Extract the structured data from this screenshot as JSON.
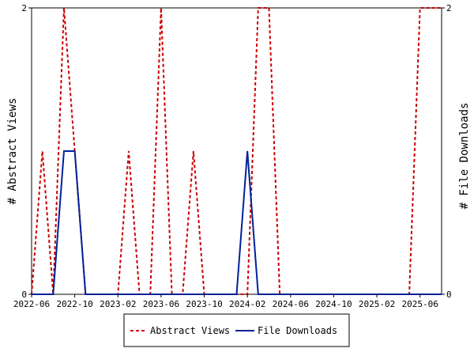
{
  "chart_data": {
    "type": "line",
    "title": "",
    "x": [
      "2022-06",
      "2022-07",
      "2022-08",
      "2022-09",
      "2022-10",
      "2022-11",
      "2022-12",
      "2023-01",
      "2023-02",
      "2023-03",
      "2023-04",
      "2023-05",
      "2023-06",
      "2023-07",
      "2023-08",
      "2023-09",
      "2023-10",
      "2023-11",
      "2023-12",
      "2024-01",
      "2024-02",
      "2024-03",
      "2024-04",
      "2024-05",
      "2024-06",
      "2024-07",
      "2024-08",
      "2024-09",
      "2024-10",
      "2024-11",
      "2024-12",
      "2025-01",
      "2025-02",
      "2025-03",
      "2025-04",
      "2025-05",
      "2025-06",
      "2025-07",
      "2025-08"
    ],
    "x_tick_labels": [
      "2022-06",
      "2022-10",
      "2023-02",
      "2023-06",
      "2023-10",
      "2024-02",
      "2024-06",
      "2024-10",
      "2025-02",
      "2025-06"
    ],
    "xlim": [
      "2022-06",
      "2025-08"
    ],
    "y_left": {
      "label": "# Abstract Views",
      "ylim": [
        0,
        2
      ],
      "ticks": [
        0,
        2
      ]
    },
    "y_right": {
      "label": "# File Downloads",
      "ylim": [
        0,
        2
      ],
      "ticks": [
        0,
        2
      ]
    },
    "series": [
      {
        "name": "Abstract Views",
        "axis": "left",
        "color": "#cc0000",
        "style": "dashed",
        "values": [
          0,
          1,
          0,
          2,
          1,
          0,
          0,
          0,
          0,
          1,
          0,
          0,
          2,
          0,
          0,
          1,
          0,
          0,
          0,
          0,
          0,
          2,
          2,
          0,
          0,
          0,
          0,
          0,
          0,
          0,
          0,
          0,
          0,
          0,
          0,
          0,
          2,
          2,
          2
        ]
      },
      {
        "name": "File Downloads",
        "axis": "right",
        "color": "#002299",
        "style": "solid",
        "values": [
          0,
          0,
          0,
          1,
          1,
          0,
          0,
          0,
          0,
          0,
          0,
          0,
          0,
          0,
          0,
          0,
          0,
          0,
          0,
          0,
          1,
          0,
          0,
          0,
          0,
          0,
          0,
          0,
          0,
          0,
          0,
          0,
          0,
          0,
          0,
          0,
          0,
          0,
          0
        ]
      }
    ],
    "grid": false,
    "legend": "bottom"
  }
}
